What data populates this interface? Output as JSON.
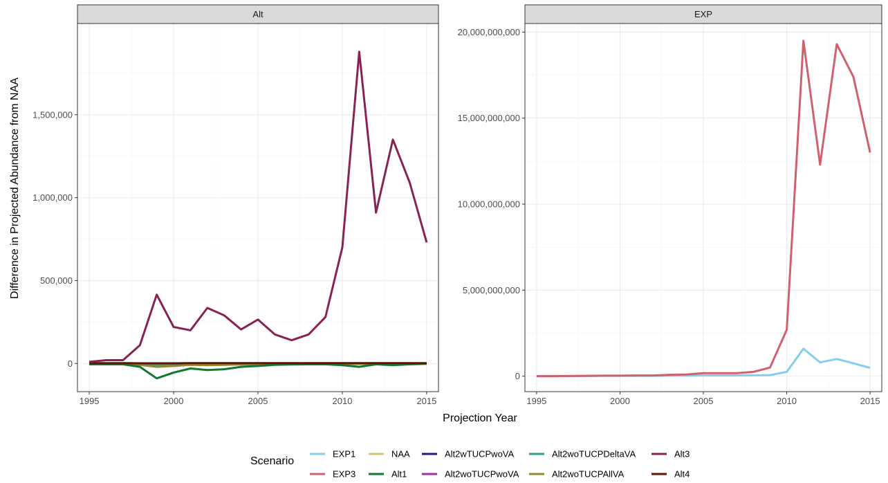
{
  "chart_data": {
    "type": "line",
    "xlabel": "Projection Year",
    "ylabel": "Difference in Projected Abundance from NAA",
    "legend": {
      "title": "Scenario",
      "placement": "bottom",
      "entries": [
        {
          "name": "EXP1",
          "color": "#87CEEB"
        },
        {
          "name": "EXP3",
          "color": "#D1606F"
        },
        {
          "name": "NAA",
          "color": "#D9C27A"
        },
        {
          "name": "Alt1",
          "color": "#117733"
        },
        {
          "name": "Alt2wTUCPwoVA",
          "color": "#1F1A80"
        },
        {
          "name": "Alt2woTUCPwoVA",
          "color": "#9C2FA3"
        },
        {
          "name": "Alt2woTUCPDeltaVA",
          "color": "#2E9E8A"
        },
        {
          "name": "Alt2woTUCPAllVA",
          "color": "#8F8A2E"
        },
        {
          "name": "Alt3",
          "color": "#882255"
        },
        {
          "name": "Alt4",
          "color": "#661100"
        }
      ]
    },
    "panels": [
      {
        "strip": "Alt",
        "xlim": [
          1994.3,
          2015.7
        ],
        "ylim": [
          -170000,
          2050000
        ],
        "x_ticks": [
          1995,
          2000,
          2005,
          2010,
          2015
        ],
        "x_tick_labels": [
          "1995",
          "2000",
          "2005",
          "2010",
          "2015"
        ],
        "y_ticks": [
          0,
          500000,
          1000000,
          1500000
        ],
        "y_tick_labels": [
          "0",
          "500,000",
          "1,000,000",
          "1,500,000"
        ],
        "x": [
          1995,
          1996,
          1997,
          1998,
          1999,
          2000,
          2001,
          2002,
          2003,
          2004,
          2005,
          2006,
          2007,
          2008,
          2009,
          2010,
          2011,
          2012,
          2013,
          2014,
          2015
        ],
        "series": [
          {
            "name": "NAA",
            "values": [
              0,
              0,
              0,
              0,
              0,
              0,
              0,
              0,
              0,
              0,
              0,
              0,
              0,
              0,
              0,
              0,
              0,
              0,
              0,
              0,
              0
            ]
          },
          {
            "name": "Alt2wTUCPwoVA",
            "values": [
              0,
              0,
              0,
              -2000,
              -3000,
              -2000,
              -1000,
              -1000,
              -1000,
              -1000,
              -1000,
              0,
              0,
              0,
              0,
              0,
              0,
              0,
              0,
              0,
              0
            ]
          },
          {
            "name": "Alt2woTUCPwoVA",
            "values": [
              0,
              0,
              0,
              -3000,
              -5000,
              -3000,
              -2000,
              -2000,
              -2000,
              -1000,
              -1000,
              -1000,
              0,
              0,
              0,
              0,
              0,
              0,
              0,
              0,
              0
            ]
          },
          {
            "name": "Alt2woTUCPDeltaVA",
            "values": [
              0,
              0,
              0,
              -4000,
              -8000,
              -5000,
              -3000,
              -3000,
              -3000,
              -2000,
              -2000,
              -1000,
              -1000,
              -1000,
              -1000,
              -1000,
              -1000,
              0,
              0,
              0,
              0
            ]
          },
          {
            "name": "Alt2woTUCPAllVA",
            "values": [
              0,
              -2000,
              -3000,
              -8000,
              -20000,
              -15000,
              -8000,
              -10000,
              -8000,
              -6000,
              -5000,
              -3000,
              -2000,
              -2000,
              -2000,
              -2000,
              -3000,
              -1000,
              -1000,
              -1000,
              0
            ]
          },
          {
            "name": "Alt1",
            "values": [
              -5000,
              -5000,
              -5000,
              -20000,
              -90000,
              -55000,
              -30000,
              -40000,
              -35000,
              -20000,
              -15000,
              -8000,
              -6000,
              -5000,
              -5000,
              -10000,
              -20000,
              -5000,
              -10000,
              -5000,
              -2000
            ]
          },
          {
            "name": "Alt4",
            "values": [
              2000,
              2000,
              2000,
              1000,
              1000,
              1000,
              2000,
              2000,
              2000,
              2000,
              2000,
              2000,
              2000,
              2000,
              2000,
              2000,
              2000,
              2000,
              2000,
              2000,
              2000
            ]
          },
          {
            "name": "Alt3",
            "values": [
              10000,
              20000,
              20000,
              110000,
              415000,
              220000,
              200000,
              335000,
              290000,
              205000,
              265000,
              175000,
              140000,
              175000,
              280000,
              700000,
              1880000,
              910000,
              1350000,
              1090000,
              730000
            ]
          }
        ]
      },
      {
        "strip": "EXP",
        "xlim": [
          1994.3,
          2015.7
        ],
        "ylim": [
          -900000000,
          20500000000
        ],
        "x_ticks": [
          1995,
          2000,
          2005,
          2010,
          2015
        ],
        "x_tick_labels": [
          "1995",
          "2000",
          "2005",
          "2010",
          "2015"
        ],
        "y_ticks": [
          0,
          5000000000,
          10000000000,
          15000000000,
          20000000000
        ],
        "y_tick_labels": [
          "0",
          "5,000,000,000",
          "10,000,000,000",
          "15,000,000,000",
          "20,000,000,000"
        ],
        "x": [
          1995,
          1996,
          1997,
          1998,
          1999,
          2000,
          2001,
          2002,
          2003,
          2004,
          2005,
          2006,
          2007,
          2008,
          2009,
          2010,
          2011,
          2012,
          2013,
          2014,
          2015
        ],
        "series": [
          {
            "name": "EXP1",
            "values": [
              0,
              0,
              10000000,
              10000000,
              20000000,
              20000000,
              20000000,
              20000000,
              30000000,
              30000000,
              40000000,
              40000000,
              40000000,
              50000000,
              60000000,
              250000000,
              1600000000,
              800000000,
              1000000000,
              750000000,
              480000000
            ]
          },
          {
            "name": "EXP3",
            "values": [
              0,
              0,
              10000000,
              20000000,
              30000000,
              30000000,
              40000000,
              40000000,
              80000000,
              100000000,
              180000000,
              180000000,
              180000000,
              250000000,
              500000000,
              2700000000,
              19500000000,
              12300000000,
              19300000000,
              17400000000,
              13000000000
            ]
          }
        ]
      }
    ]
  }
}
